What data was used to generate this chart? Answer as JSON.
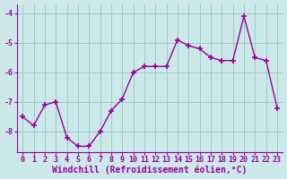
{
  "x": [
    0,
    1,
    2,
    3,
    4,
    5,
    6,
    7,
    8,
    9,
    10,
    11,
    12,
    13,
    14,
    15,
    16,
    17,
    18,
    19,
    20,
    21,
    22,
    23
  ],
  "y": [
    -7.5,
    -7.8,
    -7.1,
    -7.0,
    -8.2,
    -8.5,
    -8.5,
    -8.0,
    -7.3,
    -6.9,
    -6.0,
    -5.8,
    -5.8,
    -5.8,
    -4.9,
    -5.1,
    -5.2,
    -5.5,
    -5.6,
    -5.6,
    -4.1,
    -5.5,
    -5.6,
    -7.2
  ],
  "line_color": "#990099",
  "marker": "+",
  "marker_size": 4,
  "linewidth": 1.0,
  "xlim": [
    -0.5,
    23.5
  ],
  "ylim": [
    -8.7,
    -3.7
  ],
  "yticks": [
    -8,
    -7,
    -6,
    -5,
    -4
  ],
  "xtick_labels": [
    "0",
    "1",
    "2",
    "3",
    "4",
    "5",
    "6",
    "7",
    "8",
    "9",
    "10",
    "11",
    "12",
    "13",
    "14",
    "15",
    "16",
    "17",
    "18",
    "19",
    "20",
    "21",
    "22",
    "23"
  ],
  "xlabel": "Windchill (Refroidissement éolien,°C)",
  "xlabel_fontsize": 7,
  "xlabel_color": "#990099",
  "grid_color": "#99cccc",
  "bg_color": "#cce8e8",
  "tick_fontsize": 6,
  "tick_color": "#990099",
  "spine_color": "#990099",
  "markeredgewidth": 1.2
}
